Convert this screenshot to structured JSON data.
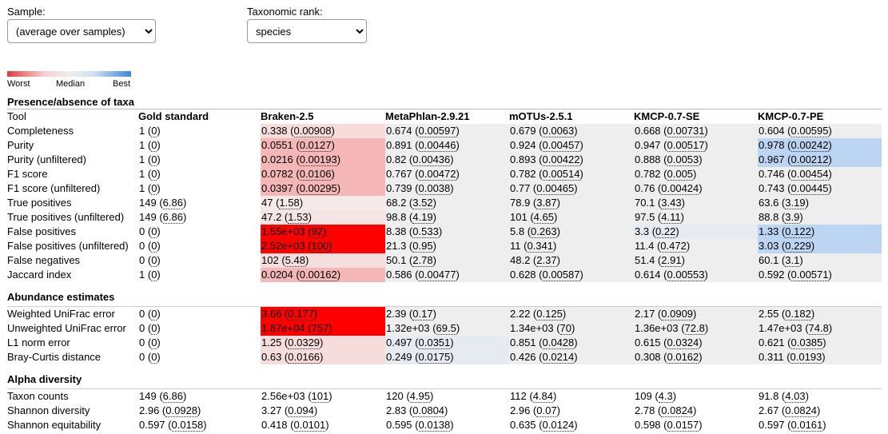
{
  "controls": {
    "sample_label": "Sample:",
    "sample_value": "(average over samples)",
    "rank_label": "Taxonomic rank:",
    "rank_value": "species"
  },
  "legend": {
    "worst": "Worst",
    "median": "Median",
    "best": "Best",
    "colors": {
      "worst": "#e8393b",
      "median": "#eeeeee",
      "best": "#3c87d6"
    }
  },
  "table": {
    "columns": [
      "Tool",
      "Gold standard",
      "Braken-2.5",
      "MetaPhlan-2.9.21",
      "mOTUs-2.5.1",
      "KMCP-0.7-SE",
      "KMCP-0.7-PE"
    ],
    "sections": [
      {
        "title": "Presence/absence of taxa",
        "rows": [
          {
            "metric": "Completeness",
            "cells": [
              {
                "v": "1",
                "sd": "0"
              },
              {
                "v": "0.338",
                "sd": "0.00908",
                "bg": "#f7dcdc"
              },
              {
                "v": "0.674",
                "sd": "0.00597",
                "bg": "#eeeeee"
              },
              {
                "v": "0.679",
                "sd": "0.0063",
                "bg": "#eeeeee"
              },
              {
                "v": "0.668",
                "sd": "0.00731",
                "bg": "#eeeeee"
              },
              {
                "v": "0.604",
                "sd": "0.00595",
                "bg": "#eeeeee"
              }
            ]
          },
          {
            "metric": "Purity",
            "cells": [
              {
                "v": "1",
                "sd": "0"
              },
              {
                "v": "0.0551",
                "sd": "0.0127",
                "bg": "#f5b6b7"
              },
              {
                "v": "0.891",
                "sd": "0.00446",
                "bg": "#eeeeee"
              },
              {
                "v": "0.924",
                "sd": "0.00457",
                "bg": "#eeeeee"
              },
              {
                "v": "0.947",
                "sd": "0.00517",
                "bg": "#eeeeee"
              },
              {
                "v": "0.978",
                "sd": "0.00242",
                "bg": "#bcd5f3"
              }
            ]
          },
          {
            "metric": "Purity (unfiltered)",
            "cells": [
              {
                "v": "1",
                "sd": "0"
              },
              {
                "v": "0.0216",
                "sd": "0.00193",
                "bg": "#f5b6b7"
              },
              {
                "v": "0.82",
                "sd": "0.00436",
                "bg": "#eeeeee"
              },
              {
                "v": "0.893",
                "sd": "0.00422",
                "bg": "#eeeeee"
              },
              {
                "v": "0.888",
                "sd": "0.0053",
                "bg": "#eeeeee"
              },
              {
                "v": "0.967",
                "sd": "0.00212",
                "bg": "#bcd5f3"
              }
            ]
          },
          {
            "metric": "F1 score",
            "cells": [
              {
                "v": "1",
                "sd": "0"
              },
              {
                "v": "0.0782",
                "sd": "0.0106",
                "bg": "#f5b6b7"
              },
              {
                "v": "0.767",
                "sd": "0.00472",
                "bg": "#eeeeee"
              },
              {
                "v": "0.782",
                "sd": "0.00514",
                "bg": "#eeeeee"
              },
              {
                "v": "0.782",
                "sd": "0.005",
                "bg": "#eeeeee"
              },
              {
                "v": "0.746",
                "sd": "0.00454",
                "bg": "#eeeeee"
              }
            ]
          },
          {
            "metric": "F1 score (unfiltered)",
            "cells": [
              {
                "v": "1",
                "sd": "0"
              },
              {
                "v": "0.0397",
                "sd": "0.00295",
                "bg": "#f5b6b7"
              },
              {
                "v": "0.739",
                "sd": "0.0038",
                "bg": "#eeeeee"
              },
              {
                "v": "0.77",
                "sd": "0.00465",
                "bg": "#eeeeee"
              },
              {
                "v": "0.76",
                "sd": "0.00424",
                "bg": "#eeeeee"
              },
              {
                "v": "0.743",
                "sd": "0.00445",
                "bg": "#eeeeee"
              }
            ]
          },
          {
            "metric": "True positives",
            "cells": [
              {
                "v": "149",
                "sd": "6.86"
              },
              {
                "v": "47",
                "sd": "1.58",
                "bg": "#f4eaea"
              },
              {
                "v": "68.2",
                "sd": "3.52",
                "bg": "#eeeeee"
              },
              {
                "v": "78.9",
                "sd": "3.87",
                "bg": "#eeeeee"
              },
              {
                "v": "70.1",
                "sd": "3.43",
                "bg": "#eeeeee"
              },
              {
                "v": "63.6",
                "sd": "3.19",
                "bg": "#eeeeee"
              }
            ]
          },
          {
            "metric": "True positives (unfiltered)",
            "cells": [
              {
                "v": "149",
                "sd": "6.86"
              },
              {
                "v": "47.2",
                "sd": "1.53",
                "bg": "#f5e4e4"
              },
              {
                "v": "98.8",
                "sd": "4.19",
                "bg": "#eeeeee"
              },
              {
                "v": "101",
                "sd": "4.65",
                "bg": "#eeeeee"
              },
              {
                "v": "97.5",
                "sd": "4.11",
                "bg": "#eeeeee"
              },
              {
                "v": "88.8",
                "sd": "3.9",
                "bg": "#eeeeee"
              }
            ]
          },
          {
            "metric": "False positives",
            "cells": [
              {
                "v": "0",
                "sd": "0"
              },
              {
                "v": "1.55e+03",
                "sd": "92",
                "bg": "#ff0000"
              },
              {
                "v": "8.38",
                "sd": "0.533",
                "bg": "#eeeeee"
              },
              {
                "v": "5.8",
                "sd": "0.263",
                "bg": "#eeeeee"
              },
              {
                "v": "3.3",
                "sd": "0.22",
                "bg": "#e6ebf2"
              },
              {
                "v": "1.33",
                "sd": "0.122",
                "bg": "#bcd5f3"
              }
            ]
          },
          {
            "metric": "False positives (unfiltered)",
            "cells": [
              {
                "v": "0",
                "sd": "0"
              },
              {
                "v": "2.52e+03",
                "sd": "100",
                "bg": "#ff0000"
              },
              {
                "v": "21.3",
                "sd": "0.95",
                "bg": "#eeeeee"
              },
              {
                "v": "11",
                "sd": "0.341",
                "bg": "#eeeeee"
              },
              {
                "v": "11.4",
                "sd": "0.472",
                "bg": "#eeeeee"
              },
              {
                "v": "3.03",
                "sd": "0.229",
                "bg": "#bcd5f3"
              }
            ]
          },
          {
            "metric": "False negatives",
            "cells": [
              {
                "v": "0",
                "sd": "0"
              },
              {
                "v": "102",
                "sd": "5.48",
                "bg": "#f4dede"
              },
              {
                "v": "50.1",
                "sd": "2.78",
                "bg": "#eeeeee"
              },
              {
                "v": "48.2",
                "sd": "2.37",
                "bg": "#eeeeee"
              },
              {
                "v": "51.4",
                "sd": "2.91",
                "bg": "#eeeeee"
              },
              {
                "v": "60.1",
                "sd": "3.1",
                "bg": "#eeeeee"
              }
            ]
          },
          {
            "metric": "Jaccard index",
            "cells": [
              {
                "v": "1",
                "sd": "0"
              },
              {
                "v": "0.0204",
                "sd": "0.00162",
                "bg": "#f5b6b7"
              },
              {
                "v": "0.586",
                "sd": "0.00477",
                "bg": "#eeeeee"
              },
              {
                "v": "0.628",
                "sd": "0.00587",
                "bg": "#eeeeee"
              },
              {
                "v": "0.614",
                "sd": "0.00553",
                "bg": "#eeeeee"
              },
              {
                "v": "0.592",
                "sd": "0.00571",
                "bg": "#eeeeee"
              }
            ]
          }
        ]
      },
      {
        "title": "Abundance estimates",
        "rows": [
          {
            "metric": "Weighted UniFrac error",
            "cells": [
              {
                "v": "0",
                "sd": "0"
              },
              {
                "v": "3.66",
                "sd": "0.177",
                "bg": "#ff0000"
              },
              {
                "v": "2.39",
                "sd": "0.17",
                "bg": "#eeeeee"
              },
              {
                "v": "2.22",
                "sd": "0.125",
                "bg": "#eeeeee"
              },
              {
                "v": "2.17",
                "sd": "0.0909",
                "bg": "#eeeeee"
              },
              {
                "v": "2.55",
                "sd": "0.182",
                "bg": "#eeeeee"
              }
            ]
          },
          {
            "metric": "Unweighted UniFrac error",
            "cells": [
              {
                "v": "0",
                "sd": "0"
              },
              {
                "v": "1.87e+04",
                "sd": "757",
                "bg": "#ff0000"
              },
              {
                "v": "1.32e+03",
                "sd": "69.5",
                "bg": "#eeeeee"
              },
              {
                "v": "1.34e+03",
                "sd": "70",
                "bg": "#eeeeee"
              },
              {
                "v": "1.36e+03",
                "sd": "72.8",
                "bg": "#eeeeee"
              },
              {
                "v": "1.47e+03",
                "sd": "74.8",
                "bg": "#eeeeee"
              }
            ]
          },
          {
            "metric": "L1 norm error",
            "cells": [
              {
                "v": "0",
                "sd": "0"
              },
              {
                "v": "1.25",
                "sd": "0.0329",
                "bg": "#f7dcdc"
              },
              {
                "v": "0.497",
                "sd": "0.0351",
                "bg": "#e6ebf2"
              },
              {
                "v": "0.851",
                "sd": "0.0428",
                "bg": "#eeeeee"
              },
              {
                "v": "0.615",
                "sd": "0.0324",
                "bg": "#eeeeee"
              },
              {
                "v": "0.621",
                "sd": "0.0385",
                "bg": "#eeeeee"
              }
            ]
          },
          {
            "metric": "Bray-Curtis distance",
            "cells": [
              {
                "v": "0",
                "sd": "0"
              },
              {
                "v": "0.63",
                "sd": "0.0166",
                "bg": "#f7dcdc"
              },
              {
                "v": "0.249",
                "sd": "0.0175",
                "bg": "#e6ebf2"
              },
              {
                "v": "0.426",
                "sd": "0.0214",
                "bg": "#eeeeee"
              },
              {
                "v": "0.308",
                "sd": "0.0162",
                "bg": "#eeeeee"
              },
              {
                "v": "0.311",
                "sd": "0.0193",
                "bg": "#eeeeee"
              }
            ]
          }
        ]
      },
      {
        "title": "Alpha diversity",
        "rows": [
          {
            "metric": "Taxon counts",
            "cells": [
              {
                "v": "149",
                "sd": "6.86"
              },
              {
                "v": "2.56e+03",
                "sd": "101"
              },
              {
                "v": "120",
                "sd": "4.95"
              },
              {
                "v": "112",
                "sd": "4.84"
              },
              {
                "v": "109",
                "sd": "4.3"
              },
              {
                "v": "91.8",
                "sd": "4.03"
              }
            ]
          },
          {
            "metric": "Shannon diversity",
            "cells": [
              {
                "v": "2.96",
                "sd": "0.0928"
              },
              {
                "v": "3.27",
                "sd": "0.094"
              },
              {
                "v": "2.83",
                "sd": "0.0804"
              },
              {
                "v": "2.96",
                "sd": "0.07"
              },
              {
                "v": "2.78",
                "sd": "0.0824"
              },
              {
                "v": "2.67",
                "sd": "0.0824"
              }
            ]
          },
          {
            "metric": "Shannon equitability",
            "cells": [
              {
                "v": "0.597",
                "sd": "0.0158"
              },
              {
                "v": "0.418",
                "sd": "0.0101"
              },
              {
                "v": "0.595",
                "sd": "0.0138"
              },
              {
                "v": "0.635",
                "sd": "0.0124"
              },
              {
                "v": "0.598",
                "sd": "0.0157"
              },
              {
                "v": "0.597",
                "sd": "0.0161"
              }
            ]
          }
        ]
      }
    ]
  }
}
